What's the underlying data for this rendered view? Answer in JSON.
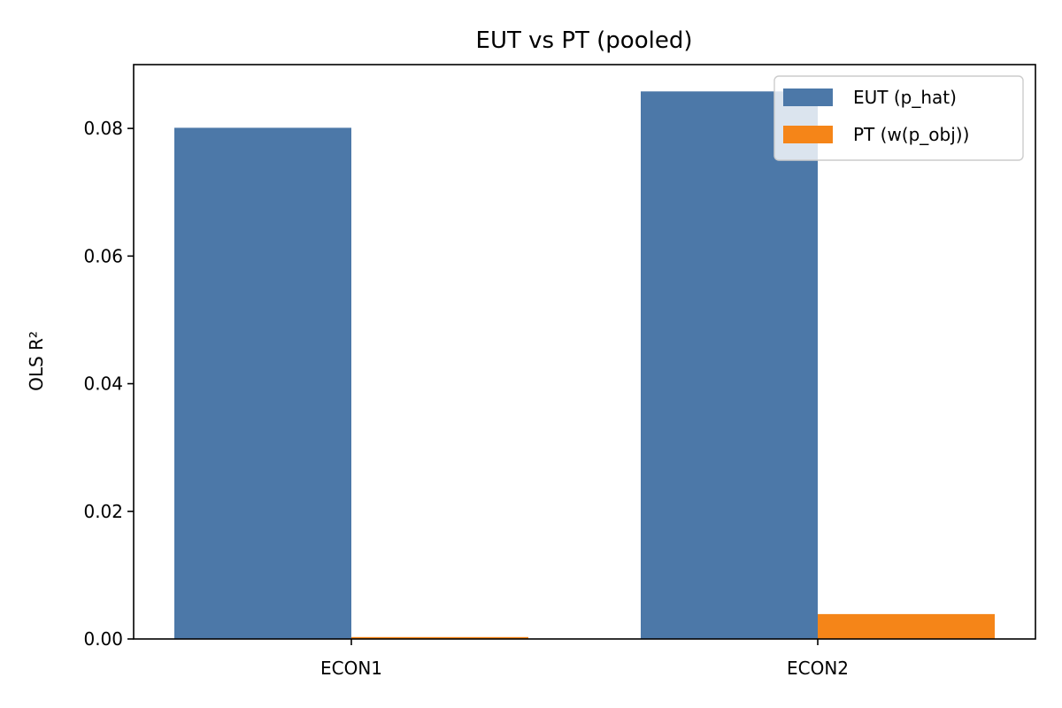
{
  "chart_data": {
    "type": "bar",
    "title": "EUT vs PT (pooled)",
    "xlabel": "",
    "ylabel": "OLS R²",
    "categories": [
      "ECON1",
      "ECON2"
    ],
    "series": [
      {
        "name": "EUT (p_hat)",
        "values": [
          0.0801,
          0.0858
        ],
        "color": "#4c78a8"
      },
      {
        "name": "PT (w(p_obj))",
        "values": [
          0.0003,
          0.0039
        ],
        "color": "#f58518"
      }
    ],
    "ylim": [
      0,
      0.09
    ],
    "yticks": [
      "0.00",
      "0.02",
      "0.04",
      "0.06",
      "0.08"
    ],
    "grid": false,
    "legend_position": "top-right"
  }
}
